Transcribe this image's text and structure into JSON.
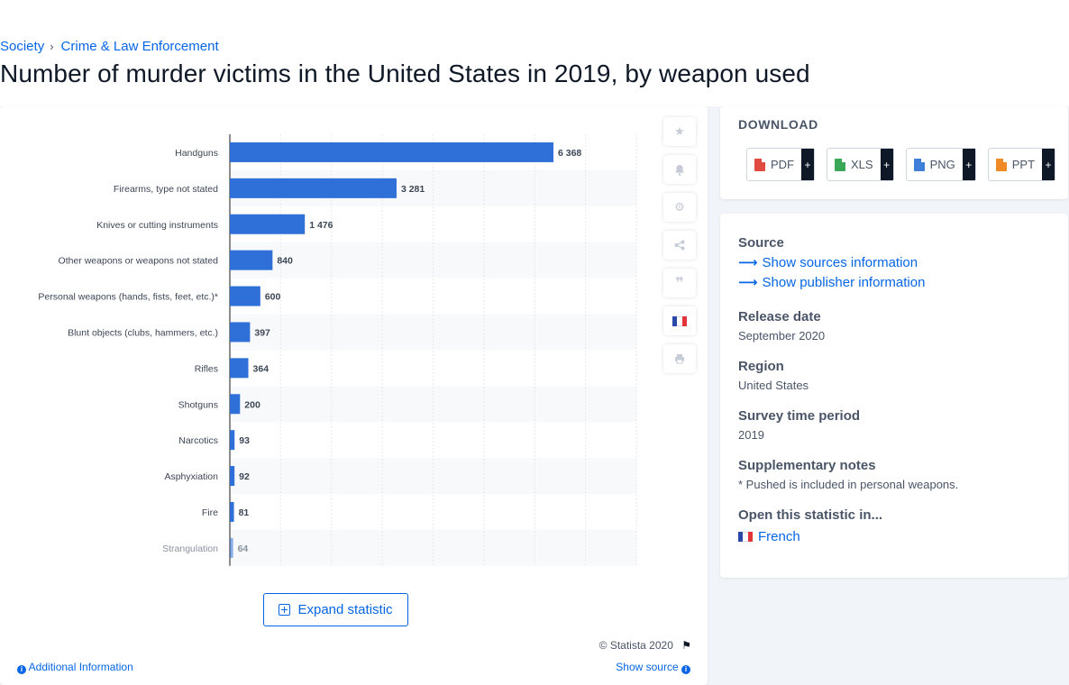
{
  "breadcrumb": {
    "items": [
      "Society",
      "Crime & Law Enforcement"
    ]
  },
  "title": "Number of murder victims in the United States in 2019, by weapon used",
  "chart_data": {
    "type": "bar",
    "orientation": "horizontal",
    "categories": [
      "Handguns",
      "Firearms, type not stated",
      "Knives or cutting instruments",
      "Other weapons or weapons not stated",
      "Personal weapons (hands, fists, feet, etc.)*",
      "Blunt objects (clubs, hammers, etc.)",
      "Rifles",
      "Shotguns",
      "Narcotics",
      "Asphyxiation",
      "Fire",
      "Strangulation"
    ],
    "values": [
      6368,
      3281,
      1476,
      840,
      600,
      397,
      364,
      200,
      93,
      92,
      81,
      64
    ],
    "data_labels": [
      "6 368",
      "3 281",
      "1 476",
      "840",
      "600",
      "397",
      "364",
      "200",
      "93",
      "92",
      "81",
      "64"
    ],
    "xlim": [
      0,
      8000
    ],
    "grid": true,
    "bar_color": "#2f6fd8"
  },
  "toolbar": {
    "icons": [
      "star-icon",
      "bell-icon",
      "gear-icon",
      "share-icon",
      "quote-icon",
      "flag-fr-icon",
      "print-icon"
    ]
  },
  "expand_label": "Expand statistic",
  "copyright": "© Statista 2020",
  "additional_info": "Additional Information",
  "show_source": "Show source",
  "download": {
    "title": "DOWNLOAD",
    "buttons": [
      {
        "label": "PDF",
        "color": "#e04a3f"
      },
      {
        "label": "XLS",
        "color": "#3aa757"
      },
      {
        "label": "PNG",
        "color": "#3d7fd9"
      },
      {
        "label": "PPT",
        "color": "#f08a24"
      }
    ],
    "plus": "+"
  },
  "details": {
    "source_label": "Source",
    "show_sources": "Show sources information",
    "show_publisher": "Show publisher information",
    "release_label": "Release date",
    "release_value": "September 2020",
    "region_label": "Region",
    "region_value": "United States",
    "period_label": "Survey time period",
    "period_value": "2019",
    "notes_label": "Supplementary notes",
    "notes_value": "* Pushed is included in personal weapons.",
    "open_label": "Open this statistic in...",
    "open_lang": "French"
  }
}
